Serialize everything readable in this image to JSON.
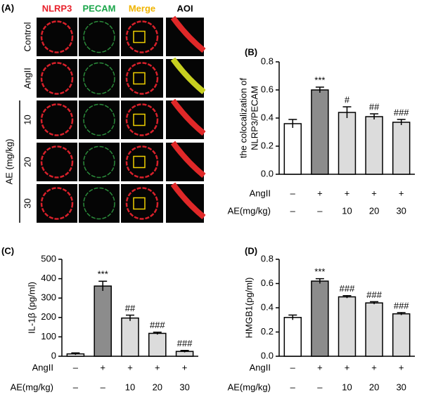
{
  "panel_a": {
    "label": "(A)",
    "columns": [
      "NLRP3",
      "PECAM",
      "Merge",
      "AOI"
    ],
    "rows": [
      "Control",
      "AngII",
      "10",
      "20",
      "30"
    ],
    "group": "AE (mg/kg)"
  },
  "chart_data": [
    {
      "type": "bar",
      "panel": "(B)",
      "ylabel": [
        "the colocalization of",
        "NLRP3/PECAM"
      ],
      "categories": [
        null,
        null,
        null,
        null,
        null
      ],
      "groups": [
        {
          "name": "AngII",
          "labels": [
            "–",
            "+",
            "+",
            "+",
            "+"
          ]
        },
        {
          "name": "AE(mg/kg)",
          "labels": [
            "–",
            "–",
            "10",
            "20",
            "30"
          ]
        }
      ],
      "values": [
        0.36,
        0.6,
        0.44,
        0.41,
        0.37
      ],
      "errors": [
        0.03,
        0.02,
        0.04,
        0.02,
        0.02
      ],
      "annotations": [
        null,
        "***",
        "#",
        "##",
        "###"
      ],
      "colors": [
        "#ffffff",
        "#8c8c8c",
        "#dcdcdc",
        "#dcdcdc",
        "#dcdcdc"
      ],
      "ylim": [
        0,
        0.8
      ],
      "yticks": [
        {
          "value": 0,
          "label": "0.0"
        },
        0.2,
        0.4,
        0.6,
        0.8
      ]
    },
    {
      "type": "bar",
      "panel": "(C)",
      "ylabel": [
        "IL-1β (pg/ml)"
      ],
      "categories": [
        null,
        null,
        null,
        null,
        null
      ],
      "groups": [
        {
          "name": "AngII",
          "labels": [
            "–",
            "+",
            "+",
            "+",
            "+"
          ]
        },
        {
          "name": "AE(mg/kg)",
          "labels": [
            "–",
            "–",
            "10",
            "20",
            "30"
          ]
        }
      ],
      "values": [
        12,
        362,
        197,
        118,
        25
      ],
      "errors": [
        5,
        25,
        15,
        6,
        5
      ],
      "annotations": [
        null,
        "***",
        "##",
        "###",
        "###"
      ],
      "colors": [
        "#ffffff",
        "#8c8c8c",
        "#dcdcdc",
        "#dcdcdc",
        "#dcdcdc"
      ],
      "ylim": [
        0,
        500
      ],
      "yticks": [
        0,
        100,
        200,
        300,
        400,
        500
      ]
    },
    {
      "type": "bar",
      "panel": "(D)",
      "ylabel": [
        "HMGB1(pg/ml)"
      ],
      "categories": [
        null,
        null,
        null,
        null,
        null
      ],
      "groups": [
        {
          "name": "AngII",
          "labels": [
            "–",
            "+",
            "+",
            "+",
            "+"
          ]
        },
        {
          "name": "AE(mg/kg)",
          "labels": [
            "–",
            "–",
            "10",
            "20",
            "30"
          ]
        }
      ],
      "values": [
        0.32,
        0.62,
        0.49,
        0.44,
        0.35
      ],
      "errors": [
        0.02,
        0.02,
        0.01,
        0.01,
        0.01
      ],
      "annotations": [
        null,
        "***",
        "###",
        "###",
        "###"
      ],
      "colors": [
        "#ffffff",
        "#8c8c8c",
        "#dcdcdc",
        "#dcdcdc",
        "#dcdcdc"
      ],
      "ylim": [
        0,
        0.8
      ],
      "yticks": [
        {
          "value": 0,
          "label": "0.0"
        },
        0.2,
        0.4,
        0.6,
        0.8
      ]
    }
  ]
}
